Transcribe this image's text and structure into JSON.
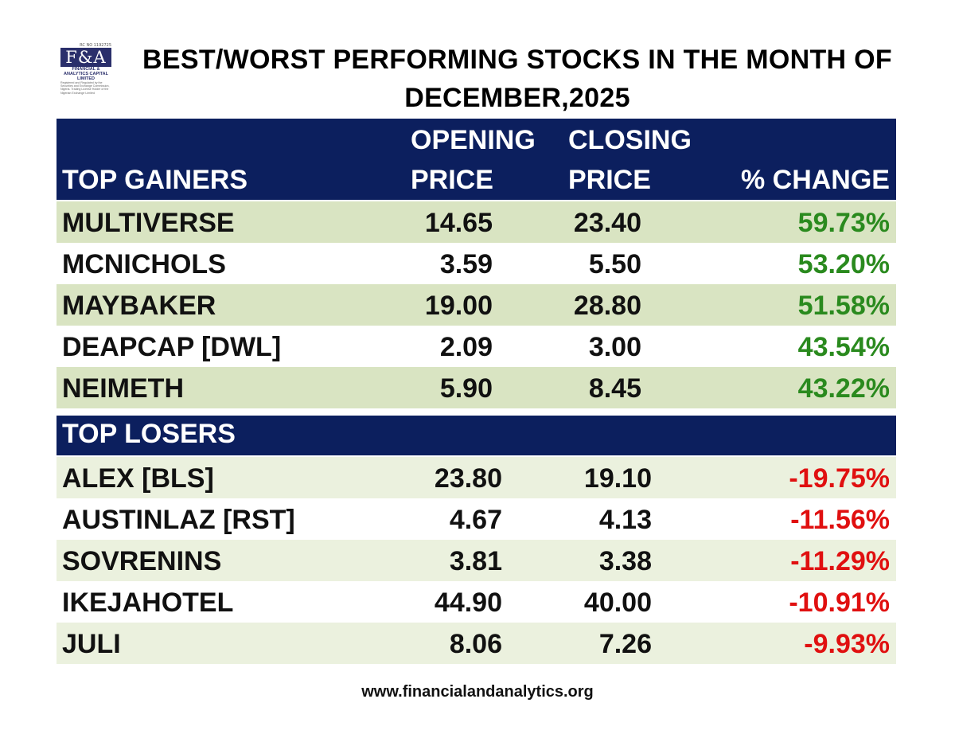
{
  "logo": {
    "rc": "RC NO 1192725",
    "mark": "F&A",
    "company": "FINANCIAL & ANALYTICS CAPITAL LIMITED",
    "license": "Registered and Regulated by the Securities and Exchange Commission, Nigeria. Trading License Holder of the Nigerian Exchange Limited"
  },
  "title": {
    "line1": "BEST/WORST PERFORMING STOCKS IN THE MONTH OF",
    "line2": "DECEMBER,2025"
  },
  "gainers": {
    "header": {
      "name": "TOP GAINERS",
      "open_l1": "OPENING",
      "open_l2": "PRICE",
      "close_l1": "CLOSING",
      "close_l2": "PRICE",
      "change": "% CHANGE"
    },
    "rows": [
      {
        "name": "MULTIVERSE",
        "open": "14.65",
        "close": "23.40",
        "change": "59.73%"
      },
      {
        "name": "MCNICHOLS",
        "open": "3.59",
        "close": "5.50",
        "change": "53.20%"
      },
      {
        "name": "MAYBAKER",
        "open": "19.00",
        "close": "28.80",
        "change": "51.58%"
      },
      {
        "name": "DEAPCAP [DWL]",
        "open": "2.09",
        "close": "3.00",
        "change": "43.54%"
      },
      {
        "name": "NEIMETH",
        "open": "5.90",
        "close": "8.45",
        "change": "43.22%"
      }
    ]
  },
  "losers": {
    "header": {
      "name": "TOP LOSERS"
    },
    "rows": [
      {
        "name": "ALEX [BLS]",
        "open": "23.80",
        "close": "19.10",
        "change": "-19.75%"
      },
      {
        "name": "AUSTINLAZ [RST]",
        "open": "4.67",
        "close": "4.13",
        "change": "-11.56%"
      },
      {
        "name": "SOVRENINS",
        "open": "3.81",
        "close": "3.38",
        "change": "-11.29%"
      },
      {
        "name": "IKEJAHOTEL",
        "open": "44.90",
        "close": "40.00",
        "change": "-10.91%"
      },
      {
        "name": "JULI",
        "open": "8.06",
        "close": "7.26",
        "change": "-9.93%"
      }
    ]
  },
  "colors": {
    "header_bg": "#0c1f5e",
    "gain_text": "#2a8a1e",
    "loss_text": "#e01010",
    "row_shade_gainers": "#d9e4c2",
    "row_shade_losers": "#ebf1de"
  },
  "footer": "www.financialandanalytics.org"
}
